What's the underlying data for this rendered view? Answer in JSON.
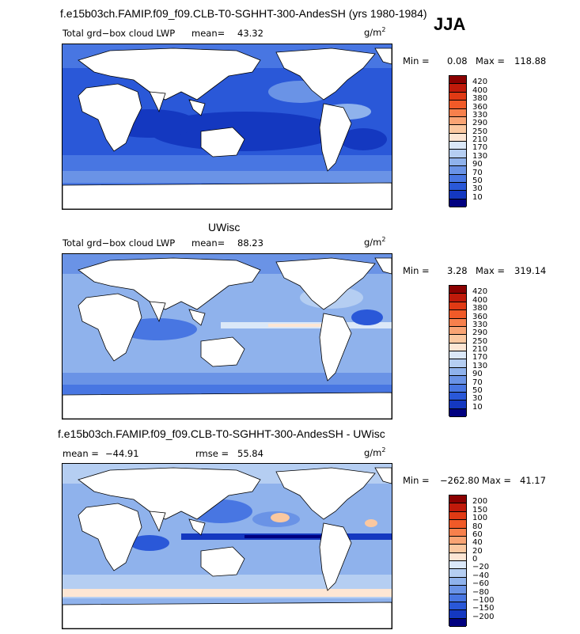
{
  "header": {
    "title": "f.e15b03ch.FAMIP.f09_f09.CLB-T0-SGHHT-300-AndesSH (yrs 1980-1984)",
    "season": "JJA"
  },
  "panels": [
    {
      "section_title": "",
      "left_label": "Total grd−box cloud LWP",
      "mean_label": "mean=",
      "mean_value": "43.32",
      "units_base": "g/m",
      "units_exp": "2",
      "min_label": "Min =",
      "min_value": "0.08",
      "max_label": "Max =",
      "max_value": "118.88",
      "colorbar": {
        "labels": [
          "420",
          "400",
          "380",
          "360",
          "330",
          "290",
          "250",
          "210",
          "170",
          "130",
          "90",
          "70",
          "50",
          "30",
          "10"
        ],
        "colors": [
          "#8b0000",
          "#c01a0a",
          "#e03a14",
          "#f05a28",
          "#f7804c",
          "#f9a474",
          "#fbc8a0",
          "#fde6d4",
          "#dbe8f8",
          "#b5cef2",
          "#8fb2ec",
          "#6a93e6",
          "#4876e2",
          "#2a58d8",
          "#1438c0",
          "#000080"
        ]
      }
    },
    {
      "section_title": "UWisc",
      "left_label": "Total grd−box cloud LWP",
      "mean_label": "mean=",
      "mean_value": "88.23",
      "units_base": "g/m",
      "units_exp": "2",
      "min_label": "Min =",
      "min_value": "3.28",
      "max_label": "Max =",
      "max_value": "319.14",
      "colorbar": {
        "labels": [
          "420",
          "400",
          "380",
          "360",
          "330",
          "290",
          "250",
          "210",
          "170",
          "130",
          "90",
          "70",
          "50",
          "30",
          "10"
        ],
        "colors": [
          "#8b0000",
          "#c01a0a",
          "#e03a14",
          "#f05a28",
          "#f7804c",
          "#f9a474",
          "#fbc8a0",
          "#fde6d4",
          "#dbe8f8",
          "#b5cef2",
          "#8fb2ec",
          "#6a93e6",
          "#4876e2",
          "#2a58d8",
          "#1438c0",
          "#000080"
        ]
      }
    },
    {
      "section_title": "f.e15b03ch.FAMIP.f09_f09.CLB-T0-SGHHT-300-AndesSH - UWisc",
      "left_label": "",
      "mean_label": "mean =",
      "mean_value": "−44.91",
      "rmse_label": "rmse =",
      "rmse_value": "55.84",
      "units_base": "g/m",
      "units_exp": "2",
      "min_label": "Min =",
      "min_value": "−262.80",
      "max_label": "Max =",
      "max_value": "41.17",
      "colorbar": {
        "labels": [
          "200",
          "150",
          "100",
          "80",
          "60",
          "40",
          "20",
          "0",
          "−20",
          "−40",
          "−60",
          "−80",
          "−100",
          "−150",
          "−200"
        ],
        "colors": [
          "#8b0000",
          "#c01a0a",
          "#e03a14",
          "#f05a28",
          "#f7804c",
          "#f9a474",
          "#fbc8a0",
          "#fde6d4",
          "#dbe8f8",
          "#b5cef2",
          "#8fb2ec",
          "#6a93e6",
          "#4876e2",
          "#2a58d8",
          "#1438c0",
          "#000080"
        ]
      }
    }
  ],
  "map_style": {
    "land_color": "#ffffff",
    "coast_color": "#000000",
    "panel1_ocean": "#2a58d8",
    "panel2_ocean": "#8fb2ec",
    "panel3_ocean": "#8fb2ec"
  }
}
